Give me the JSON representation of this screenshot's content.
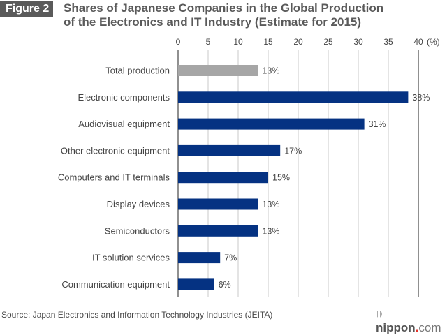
{
  "figure_label": "Figure 2",
  "title_line1": "Shares of Japanese Companies in the Global Production",
  "title_line2": "of the Electronics and IT Industry (Estimate for 2015)",
  "source": "Source: Japan Electronics and Information Technology Industries (JEITA)",
  "logo": {
    "prefix": "nippon",
    "dot": ".",
    "suffix": "com"
  },
  "colors": {
    "highlight_bar": "#a6a6a6",
    "bar": "#053282",
    "axis": "#555555",
    "grid": "#c8c8c8",
    "text": "#444444"
  },
  "chart_data": {
    "type": "bar",
    "orientation": "horizontal",
    "title": "Shares of Japanese Companies in the Global Production of the Electronics and IT Industry (Estimate for 2015)",
    "xlabel": "(%)",
    "ylabel": "",
    "xlim": [
      0,
      40
    ],
    "xticks": [
      0,
      5,
      10,
      15,
      20,
      25,
      30,
      35,
      40
    ],
    "axis_position": "top",
    "grid": true,
    "categories": [
      "Total production",
      "Electronic components",
      "Audiovisual equipment",
      "Other electronic equipment",
      "Computers and IT terminals",
      "Display devices",
      "Semiconductors",
      "IT solution services",
      "Communication equipment"
    ],
    "values": [
      13.3,
      38.3,
      31,
      17,
      15,
      13.3,
      13.3,
      7,
      6
    ],
    "data_labels": [
      "13%",
      "38%",
      "31%",
      "17%",
      "15%",
      "13%",
      "13%",
      "7%",
      "6%"
    ],
    "highlight_index": 0
  }
}
